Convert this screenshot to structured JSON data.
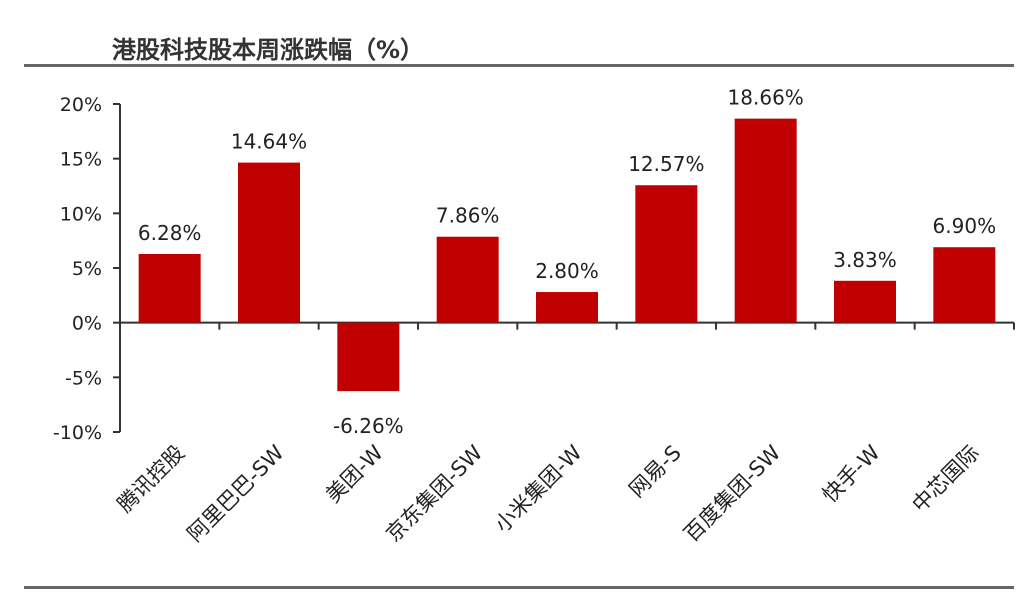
{
  "title": "港股科技股本周涨跌幅（%）",
  "colors": {
    "bar": "#c00000",
    "axis": "#333333",
    "rule": "#666666"
  },
  "chart_data": {
    "type": "bar",
    "title": "港股科技股本周涨跌幅（%）",
    "categories": [
      "腾讯控股",
      "阿里巴巴-SW",
      "美团-W",
      "京东集团-SW",
      "小米集团-W",
      "网易-S",
      "百度集团-SW",
      "快手-W",
      "中芯国际"
    ],
    "values": [
      6.28,
      14.64,
      -6.26,
      7.86,
      2.8,
      12.57,
      18.66,
      3.83,
      6.9
    ],
    "data_labels": [
      "6.28%",
      "14.64%",
      "-6.26%",
      "7.86%",
      "2.80%",
      "12.57%",
      "18.66%",
      "3.83%",
      "6.90%"
    ],
    "ylim": [
      -10,
      20
    ],
    "yticks": [
      20,
      15,
      10,
      5,
      0,
      -5,
      -10
    ],
    "ytick_labels": [
      "20%",
      "15%",
      "10%",
      "5%",
      "0%",
      "-5%",
      "-10%"
    ],
    "xlabel": "",
    "ylabel": "",
    "grid": false,
    "legend": "none"
  }
}
